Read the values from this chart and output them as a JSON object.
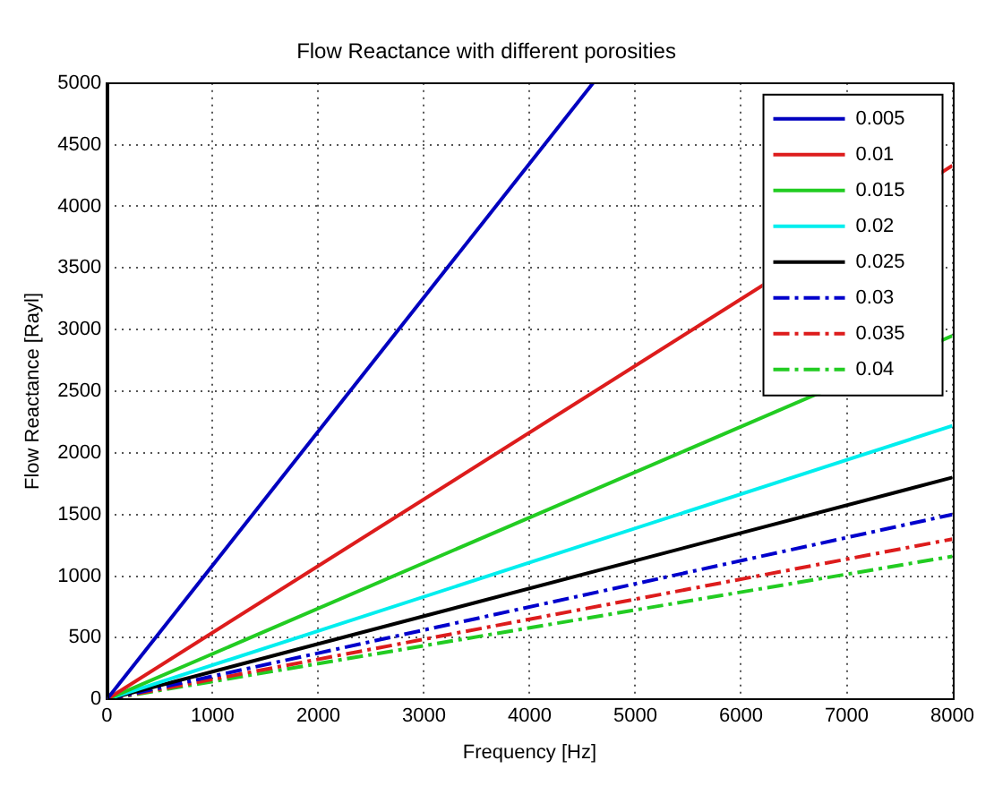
{
  "chart_data": {
    "type": "line",
    "title": "Flow Reactance with different porosities",
    "xlabel": "Frequency [Hz]",
    "ylabel": "Flow Reactance [Rayl]",
    "xlim": [
      0,
      8000
    ],
    "xticks": [
      0,
      1000,
      2000,
      3000,
      4000,
      5000,
      6000,
      7000,
      8000
    ],
    "ylim": [
      0,
      5000
    ],
    "yticks": [
      0,
      500,
      1000,
      1500,
      2000,
      2500,
      3000,
      3500,
      4000,
      4500,
      5000
    ],
    "grid": true,
    "legend": "top right",
    "marker": "none",
    "series": [
      {
        "name": "0.005",
        "color": "#0000bf",
        "x": [
          0,
          4600
        ],
        "values": [
          0,
          5000
        ],
        "line_style": "solid"
      },
      {
        "name": "0.01",
        "color": "#dd1c1c",
        "x": [
          0,
          8000
        ],
        "values": [
          0,
          4330
        ],
        "line_style": "solid"
      },
      {
        "name": "0.015",
        "color": "#22cc22",
        "x": [
          0,
          8000
        ],
        "values": [
          0,
          2950
        ],
        "line_style": "solid"
      },
      {
        "name": "0.02",
        "color": "#00eeee",
        "x": [
          0,
          8000
        ],
        "values": [
          0,
          2220
        ],
        "line_style": "solid"
      },
      {
        "name": "0.025",
        "color": "#000000",
        "x": [
          0,
          8000
        ],
        "values": [
          0,
          1800
        ],
        "line_style": "solid"
      },
      {
        "name": "0.03",
        "color": "#0000cc",
        "x": [
          0,
          8000
        ],
        "values": [
          0,
          1500
        ],
        "line_style": "dashed"
      },
      {
        "name": "0.035",
        "color": "#dd1c1c",
        "x": [
          0,
          8000
        ],
        "values": [
          0,
          1300
        ],
        "line_style": "dashed"
      },
      {
        "name": "0.04",
        "color": "#22cc22",
        "x": [
          0,
          8000
        ],
        "values": [
          0,
          1160
        ],
        "line_style": "dashed"
      }
    ]
  }
}
